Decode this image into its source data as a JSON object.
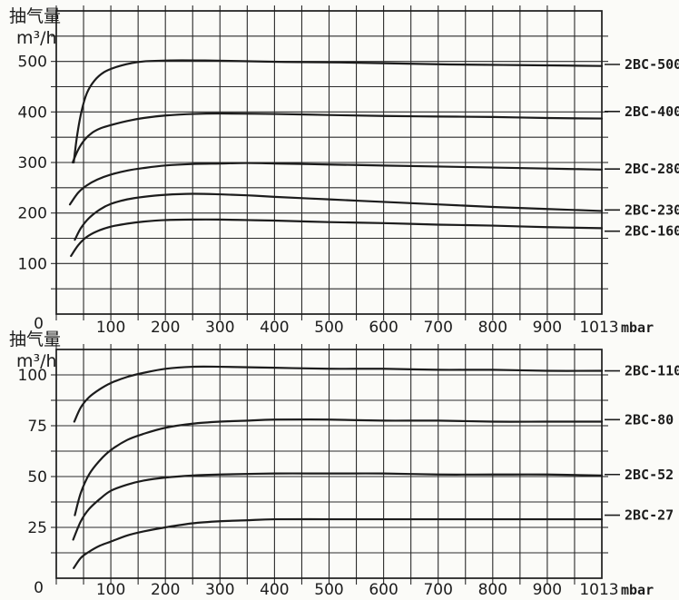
{
  "page": {
    "ink_color": "#1c1c1c",
    "grid_color": "#2b2b2b",
    "background": "#fbfbf8",
    "unit_label": "mbar"
  },
  "chart_data": [
    {
      "type": "line",
      "title": "",
      "ylabel_lines": [
        "抽气量",
        "m³/h"
      ],
      "xlabel": "mbar",
      "x_axis": {
        "min": 0,
        "grid_step": 50,
        "grid_max": 950,
        "max_label_value": 1013,
        "tick_labels": [
          "0",
          "100",
          "200",
          "300",
          "400",
          "500",
          "600",
          "700",
          "800",
          "900",
          "1013"
        ]
      },
      "y_axis": {
        "min": 0,
        "max": 600,
        "grid_step": 50,
        "tick_labels": [
          "0",
          "100",
          "200",
          "300",
          "400",
          "500"
        ],
        "tick_values": [
          0,
          100,
          200,
          300,
          400,
          500
        ]
      },
      "grid": true,
      "legend_position": "right",
      "series": [
        {
          "name": "2BC-500",
          "label_value": 494,
          "points": [
            [
              32,
              300
            ],
            [
              38,
              352
            ],
            [
              46,
              400
            ],
            [
              56,
              437
            ],
            [
              70,
              462
            ],
            [
              88,
              479
            ],
            [
              110,
              489
            ],
            [
              135,
              496
            ],
            [
              160,
              500
            ],
            [
              210,
              502
            ],
            [
              260,
              502
            ],
            [
              320,
              501
            ],
            [
              420,
              499
            ],
            [
              520,
              498
            ],
            [
              620,
              496
            ],
            [
              720,
              494
            ],
            [
              820,
              493
            ],
            [
              920,
              492
            ],
            [
              1013,
              491
            ]
          ]
        },
        {
          "name": "2BC-400",
          "label_value": 401,
          "points": [
            [
              30,
              300
            ],
            [
              40,
              325
            ],
            [
              52,
              345
            ],
            [
              66,
              359
            ],
            [
              82,
              368
            ],
            [
              100,
              374
            ],
            [
              130,
              382
            ],
            [
              160,
              388
            ],
            [
              200,
              393
            ],
            [
              250,
              396
            ],
            [
              300,
              397
            ],
            [
              400,
              396
            ],
            [
              500,
              394
            ],
            [
              600,
              392
            ],
            [
              700,
              391
            ],
            [
              800,
              390
            ],
            [
              900,
              388
            ],
            [
              1013,
              387
            ]
          ]
        },
        {
          "name": "2BC-280",
          "label_value": 287,
          "points": [
            [
              25,
              217
            ],
            [
              40,
              240
            ],
            [
              55,
              254
            ],
            [
              75,
              266
            ],
            [
              100,
              276
            ],
            [
              130,
              284
            ],
            [
              160,
              289
            ],
            [
              200,
              294
            ],
            [
              250,
              297
            ],
            [
              300,
              298
            ],
            [
              350,
              299
            ],
            [
              400,
              298
            ],
            [
              500,
              296
            ],
            [
              600,
              294
            ],
            [
              700,
              292
            ],
            [
              800,
              290
            ],
            [
              900,
              288
            ],
            [
              1013,
              286
            ]
          ]
        },
        {
          "name": "2BC-230",
          "label_value": 206,
          "points": [
            [
              34,
              147
            ],
            [
              45,
              170
            ],
            [
              60,
              190
            ],
            [
              80,
              207
            ],
            [
              100,
              218
            ],
            [
              130,
              227
            ],
            [
              160,
              232
            ],
            [
              200,
              236
            ],
            [
              250,
              238
            ],
            [
              300,
              237
            ],
            [
              350,
              235
            ],
            [
              400,
              232
            ],
            [
              500,
              227
            ],
            [
              600,
              222
            ],
            [
              700,
              217
            ],
            [
              800,
              212
            ],
            [
              900,
              208
            ],
            [
              1013,
              204
            ]
          ]
        },
        {
          "name": "2BC-160",
          "label_value": 164,
          "points": [
            [
              27,
              115
            ],
            [
              40,
              136
            ],
            [
              55,
              152
            ],
            [
              75,
              164
            ],
            [
              100,
              173
            ],
            [
              130,
              179
            ],
            [
              160,
              183
            ],
            [
              200,
              186
            ],
            [
              250,
              187
            ],
            [
              300,
              187
            ],
            [
              350,
              186
            ],
            [
              400,
              185
            ],
            [
              500,
              182
            ],
            [
              600,
              180
            ],
            [
              700,
              177
            ],
            [
              800,
              175
            ],
            [
              900,
              172
            ],
            [
              1013,
              170
            ]
          ]
        }
      ]
    },
    {
      "type": "line",
      "title": "",
      "ylabel_lines": [
        "抽气量",
        "m³/h"
      ],
      "xlabel": "mbar",
      "x_axis": {
        "min": 0,
        "grid_step": 50,
        "grid_max": 950,
        "max_label_value": 1013,
        "tick_labels": [
          "0",
          "100",
          "200",
          "300",
          "400",
          "500",
          "600",
          "700",
          "800",
          "900",
          "1013"
        ]
      },
      "y_axis": {
        "min": 0,
        "max": 112.5,
        "grid_step": 12.5,
        "tick_labels": [
          "0",
          "25",
          "50",
          "75",
          "100"
        ],
        "tick_values": [
          0,
          25,
          50,
          75,
          100
        ]
      },
      "grid": true,
      "legend_position": "right",
      "series": [
        {
          "name": "2BC-110",
          "label_value": 102,
          "points": [
            [
              33,
              77
            ],
            [
              45,
              84
            ],
            [
              60,
              89
            ],
            [
              80,
              93
            ],
            [
              100,
              96
            ],
            [
              130,
              99
            ],
            [
              160,
              101
            ],
            [
              200,
              103
            ],
            [
              250,
              104
            ],
            [
              300,
              104
            ],
            [
              400,
              103.5
            ],
            [
              500,
              103
            ],
            [
              600,
              103
            ],
            [
              700,
              102.5
            ],
            [
              800,
              102.5
            ],
            [
              900,
              102
            ],
            [
              1013,
              102
            ]
          ]
        },
        {
          "name": "2BC-80",
          "label_value": 78,
          "points": [
            [
              34,
              31
            ],
            [
              45,
              42
            ],
            [
              60,
              51
            ],
            [
              80,
              58
            ],
            [
              100,
              63
            ],
            [
              130,
              68
            ],
            [
              160,
              71
            ],
            [
              200,
              74
            ],
            [
              250,
              76
            ],
            [
              300,
              77
            ],
            [
              350,
              77.5
            ],
            [
              400,
              78
            ],
            [
              500,
              78
            ],
            [
              600,
              77.5
            ],
            [
              700,
              77.5
            ],
            [
              800,
              77
            ],
            [
              900,
              77
            ],
            [
              1013,
              77
            ]
          ]
        },
        {
          "name": "2BC-52",
          "label_value": 51,
          "points": [
            [
              31,
              19
            ],
            [
              45,
              28
            ],
            [
              60,
              34
            ],
            [
              80,
              39
            ],
            [
              100,
              43
            ],
            [
              130,
              46
            ],
            [
              160,
              48
            ],
            [
              200,
              49.5
            ],
            [
              250,
              50.5
            ],
            [
              300,
              51
            ],
            [
              400,
              51.5
            ],
            [
              500,
              51.5
            ],
            [
              600,
              51.5
            ],
            [
              700,
              51
            ],
            [
              800,
              51
            ],
            [
              900,
              51
            ],
            [
              1013,
              50.5
            ]
          ]
        },
        {
          "name": "2BC-27",
          "label_value": 31,
          "points": [
            [
              32,
              5
            ],
            [
              45,
              10
            ],
            [
              60,
              13
            ],
            [
              80,
              16
            ],
            [
              100,
              18
            ],
            [
              130,
              21
            ],
            [
              160,
              23
            ],
            [
              200,
              25
            ],
            [
              250,
              27
            ],
            [
              300,
              28
            ],
            [
              350,
              28.5
            ],
            [
              400,
              29
            ],
            [
              500,
              29
            ],
            [
              600,
              29
            ],
            [
              700,
              29
            ],
            [
              800,
              29
            ],
            [
              900,
              29
            ],
            [
              1013,
              29
            ]
          ]
        }
      ]
    }
  ]
}
